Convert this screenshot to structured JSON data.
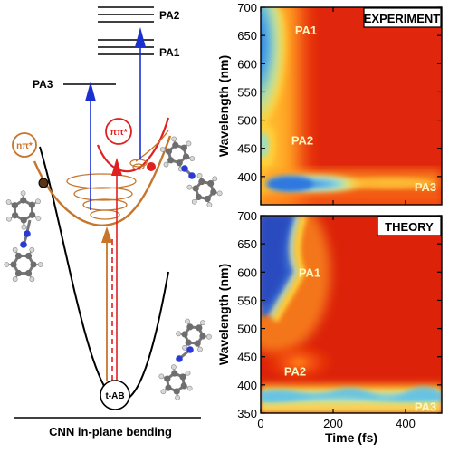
{
  "left_diagram": {
    "xlabel": "CNN in-plane bending",
    "levels": {
      "pa1": "PA1",
      "pa2": "PA2",
      "pa3": "PA3"
    },
    "states": {
      "npi": "nπ*",
      "pipi": "ππ*",
      "ground": "t-AB"
    },
    "colors": {
      "ground_curve": "#000000",
      "npi_curve": "#c8742a",
      "pipi_curve": "#e02020",
      "probe_arrow": "#1a2fd0",
      "pump_arrow": "#e02020",
      "relax_arrow": "#c8742a"
    }
  },
  "chart_data": [
    {
      "type": "heatmap",
      "title": "EXPERIMENT",
      "ylabel": "Wavelength (nm)",
      "xlabel": "",
      "xlim": [
        0,
        500
      ],
      "ylim": [
        350,
        700
      ],
      "yticks": [
        400,
        450,
        500,
        550,
        600,
        650,
        700
      ],
      "xticks": [
        0,
        200,
        400
      ],
      "show_xtick_labels": false,
      "annotations": [
        {
          "text": "PA1",
          "x": 125,
          "y": 660
        },
        {
          "text": "PA2",
          "x": 115,
          "y": 465
        },
        {
          "text": "PA3",
          "x": 455,
          "y": 382
        }
      ],
      "colormap": "jet",
      "background_level": 0.9
    },
    {
      "type": "heatmap",
      "title": "THEORY",
      "ylabel": "Wavelength (nm)",
      "xlabel": "Time (fs)",
      "xlim": [
        0,
        500
      ],
      "ylim": [
        350,
        700
      ],
      "yticks": [
        350,
        400,
        450,
        500,
        550,
        600,
        650,
        700
      ],
      "xticks": [
        0,
        200,
        400
      ],
      "show_xtick_labels": true,
      "annotations": [
        {
          "text": "PA1",
          "x": 135,
          "y": 600
        },
        {
          "text": "PA2",
          "x": 95,
          "y": 425
        },
        {
          "text": "PA3",
          "x": 455,
          "y": 362
        }
      ],
      "colormap": "jet",
      "background_level": 0.9
    }
  ]
}
